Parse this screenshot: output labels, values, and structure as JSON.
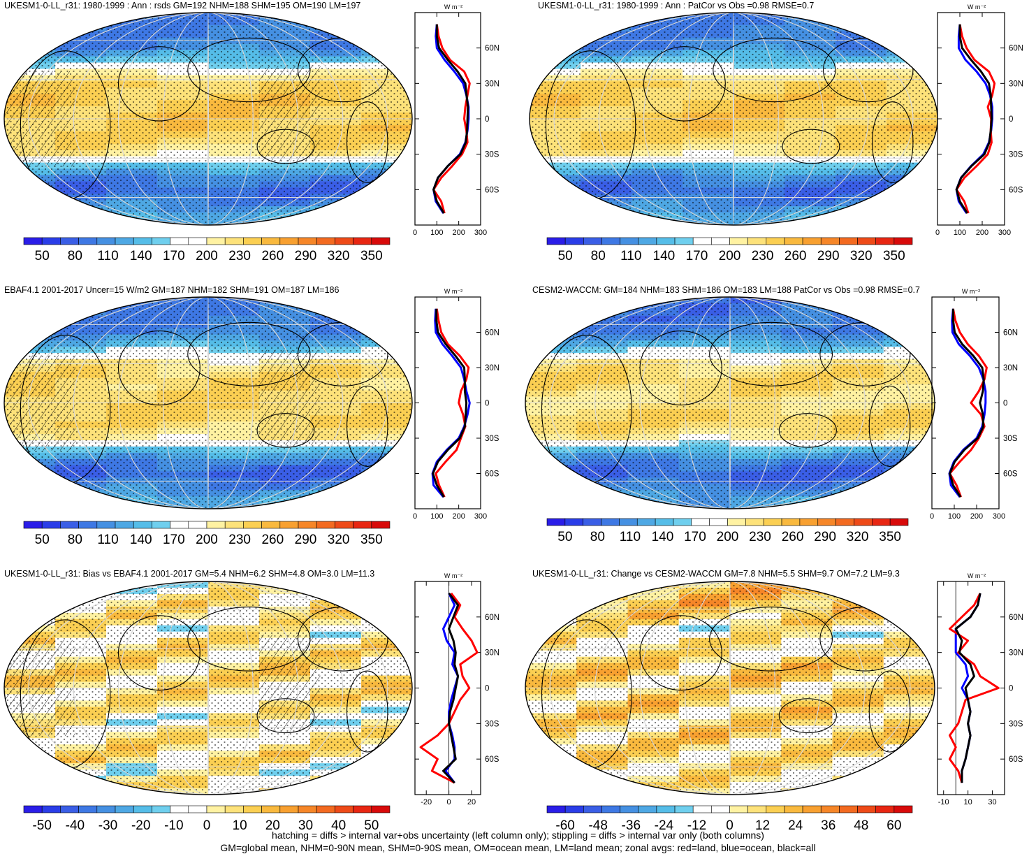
{
  "footnotes": [
    "hatching = diffs > internal var+obs uncertainty (left column only); stippling = diffs > internal var only (both columns)",
    "GM=global mean, NHM=0-90N mean, SHM=0-90S mean, OM=ocean mean, LM=land mean; zonal avgs: red=land, blue=ocean, black=all"
  ],
  "zonal_lat_labels": [
    "60N",
    "30N",
    "0",
    "30S",
    "60S"
  ],
  "zonal_unit": "W m⁻²",
  "colors": {
    "abs_scale": [
      "#2a1de8",
      "#2a3de8",
      "#3a5ee6",
      "#3e78e4",
      "#4590e2",
      "#4ea8e4",
      "#55bde8",
      "#6fcfee",
      "#ffffff",
      "#ffffff",
      "#fff2a2",
      "#fde27a",
      "#fbcf52",
      "#f9b93e",
      "#f8a030",
      "#f68628",
      "#f36a20",
      "#ee4a18",
      "#e82612",
      "#d80a0a"
    ],
    "diff_scale": [
      "#2a1de8",
      "#2a3de8",
      "#3a5ee6",
      "#3e78e4",
      "#4590e2",
      "#4ea8e4",
      "#55bde8",
      "#6fcfee",
      "#ffffff",
      "#ffffff",
      "#fff2a2",
      "#fde27a",
      "#fbcf52",
      "#f9b93e",
      "#f8a030",
      "#f68628",
      "#f36a20",
      "#ee4a18",
      "#e82612",
      "#d80a0a"
    ],
    "land_line": "#ff0000",
    "ocean_line": "#0000ff",
    "all_line": "#000000"
  },
  "chart_data": [
    {
      "type": "heatmap",
      "title": "UKESM1-0-LL_r31: 1980-1999 : Ann : rsds GM=192 NHM=188 SHM=195 OM=190 LM=197",
      "colorbar_ticks": [
        "50",
        "80",
        "110",
        "140",
        "170",
        "200",
        "230",
        "260",
        "290",
        "320",
        "350"
      ],
      "range": [
        35,
        365
      ],
      "zonal": {
        "x_ticks": [
          "0",
          "100",
          "200",
          "300"
        ],
        "xlim": [
          0,
          300
        ],
        "lat": [
          80,
          70,
          60,
          50,
          40,
          30,
          20,
          10,
          0,
          -10,
          -20,
          -30,
          -40,
          -50,
          -60,
          -70,
          -80
        ],
        "land": [
          100,
          108,
          125,
          160,
          225,
          250,
          240,
          230,
          225,
          235,
          240,
          215,
          170,
          120,
          85,
          120,
          135
        ],
        "ocean": [
          100,
          95,
          100,
          135,
          180,
          220,
          235,
          245,
          245,
          240,
          230,
          205,
          150,
          105,
          85,
          95,
          130
        ],
        "all": [
          100,
          100,
          110,
          150,
          195,
          230,
          236,
          242,
          240,
          238,
          232,
          208,
          150,
          105,
          85,
          100,
          132
        ]
      }
    },
    {
      "type": "heatmap",
      "title": "UKESM1-0-LL_r31: 1980-1999 : Ann : PatCor vs Obs =0.98 RMSE=0.7",
      "colorbar_ticks": [
        "50",
        "80",
        "110",
        "140",
        "170",
        "200",
        "230",
        "260",
        "290",
        "320",
        "350"
      ],
      "range": [
        35,
        365
      ],
      "zonal": {
        "x_ticks": [
          "0",
          "100",
          "200",
          "300"
        ],
        "xlim": [
          0,
          300
        ],
        "lat": [
          80,
          70,
          60,
          50,
          40,
          30,
          20,
          10,
          0,
          -10,
          -20,
          -30,
          -40,
          -50,
          -60,
          -70,
          -80
        ],
        "land": [
          100,
          110,
          130,
          165,
          230,
          255,
          245,
          225,
          240,
          238,
          242,
          225,
          175,
          120,
          85,
          120,
          138
        ],
        "ocean": [
          100,
          95,
          95,
          125,
          175,
          215,
          235,
          245,
          245,
          240,
          230,
          205,
          150,
          105,
          85,
          95,
          130
        ],
        "all": [
          100,
          100,
          110,
          150,
          195,
          230,
          238,
          240,
          242,
          238,
          232,
          210,
          152,
          106,
          85,
          100,
          133
        ]
      }
    },
    {
      "type": "heatmap",
      "title": "EBAF4.1 2001-2017 Uncer=15 W/m2 GM=187 NHM=182 SHM=191 OM=187 LM=186",
      "colorbar_ticks": [
        "50",
        "80",
        "110",
        "140",
        "170",
        "200",
        "230",
        "260",
        "290",
        "320",
        "350"
      ],
      "range": [
        35,
        365
      ],
      "zonal": {
        "x_ticks": [
          "0",
          "100",
          "200",
          "300"
        ],
        "xlim": [
          0,
          300
        ],
        "lat": [
          80,
          70,
          60,
          50,
          40,
          30,
          20,
          10,
          0,
          -10,
          -20,
          -30,
          -40,
          -50,
          -60,
          -70,
          -80
        ],
        "land": [
          100,
          108,
          120,
          150,
          205,
          245,
          235,
          210,
          200,
          220,
          230,
          210,
          190,
          140,
          95,
          110,
          135
        ],
        "ocean": [
          95,
          92,
          95,
          125,
          170,
          210,
          225,
          235,
          250,
          240,
          225,
          200,
          145,
          100,
          80,
          85,
          130
        ],
        "all": [
          98,
          98,
          105,
          140,
          185,
          225,
          228,
          228,
          235,
          232,
          228,
          205,
          150,
          105,
          82,
          100,
          132
        ]
      }
    },
    {
      "type": "heatmap",
      "title": "CESM2-WACCM: GM=184 NHM=183 SHM=186 OM=183 LM=188 PatCor vs Obs =0.98 RMSE=0.7",
      "colorbar_ticks": [
        "50",
        "80",
        "110",
        "140",
        "170",
        "200",
        "230",
        "260",
        "290",
        "320",
        "350"
      ],
      "range": [
        35,
        365
      ],
      "zonal": {
        "x_ticks": [
          "0",
          "100",
          "200",
          "300"
        ],
        "xlim": [
          0,
          300
        ],
        "lat": [
          80,
          70,
          60,
          50,
          40,
          30,
          20,
          10,
          0,
          -10,
          -20,
          -30,
          -40,
          -50,
          -60,
          -70,
          -80
        ],
        "land": [
          95,
          105,
          125,
          160,
          210,
          245,
          235,
          210,
          175,
          220,
          235,
          210,
          175,
          125,
          80,
          110,
          130
        ],
        "ocean": [
          95,
          90,
          92,
          120,
          170,
          210,
          230,
          240,
          240,
          235,
          225,
          200,
          140,
          98,
          78,
          85,
          125
        ],
        "all": [
          95,
          95,
          102,
          135,
          185,
          225,
          232,
          228,
          215,
          228,
          230,
          205,
          145,
          102,
          80,
          95,
          128
        ]
      }
    },
    {
      "type": "heatmap",
      "title": "UKESM1-0-LL_r31: Bias vs EBAF4.1 2001-2017 GM=5.4 NHM=6.2 SHM=4.8 OM=3.0 LM=11.3",
      "colorbar_ticks": [
        "-50",
        "-40",
        "-30",
        "-20",
        "-10",
        "0",
        "10",
        "20",
        "30",
        "40",
        "50"
      ],
      "range": [
        -55,
        55
      ],
      "zonal": {
        "x_ticks": [
          "-20",
          "0",
          "20"
        ],
        "xlim": [
          -30,
          28
        ],
        "lat": [
          80,
          70,
          60,
          50,
          40,
          30,
          20,
          10,
          0,
          -10,
          -20,
          -30,
          -40,
          -50,
          -60,
          -70,
          -80
        ],
        "land": [
          2,
          10,
          5,
          12,
          20,
          25,
          10,
          12,
          18,
          10,
          5,
          0,
          -10,
          -25,
          -10,
          -15,
          5
        ],
        "ocean": [
          0,
          5,
          0,
          -5,
          -2,
          5,
          3,
          8,
          5,
          2,
          0,
          0,
          3,
          5,
          5,
          -3,
          5
        ],
        "all": [
          0,
          8,
          4,
          0,
          4,
          6,
          5,
          8,
          6,
          4,
          1,
          0,
          2,
          4,
          6,
          -5,
          5
        ]
      }
    },
    {
      "type": "heatmap",
      "title": "UKESM1-0-LL_r31: Change vs CESM2-WACCM GM=7.8 NHM=5.5 SHM=9.7 OM=7.2 LM=9.3",
      "colorbar_ticks": [
        "-60",
        "-48",
        "-36",
        "-24",
        "-12",
        "0",
        "12",
        "24",
        "36",
        "48",
        "60"
      ],
      "range": [
        -66,
        66
      ],
      "zonal": {
        "x_ticks": [
          "-10",
          "10",
          "30"
        ],
        "xlim": [
          -15,
          40
        ],
        "lat": [
          80,
          70,
          60,
          50,
          40,
          30,
          20,
          10,
          0,
          -10,
          -20,
          -30,
          -40,
          -50,
          -60,
          -70,
          -80
        ],
        "land": [
          20,
          15,
          5,
          -5,
          10,
          2,
          15,
          20,
          35,
          8,
          5,
          2,
          -5,
          0,
          -5,
          2,
          5
        ],
        "ocean": [
          20,
          18,
          12,
          0,
          0,
          0,
          8,
          10,
          5,
          10,
          12,
          10,
          12,
          10,
          8,
          5,
          5
        ],
        "all": [
          20,
          18,
          12,
          0,
          5,
          3,
          12,
          15,
          8,
          10,
          12,
          10,
          12,
          10,
          8,
          5,
          5
        ]
      }
    }
  ]
}
